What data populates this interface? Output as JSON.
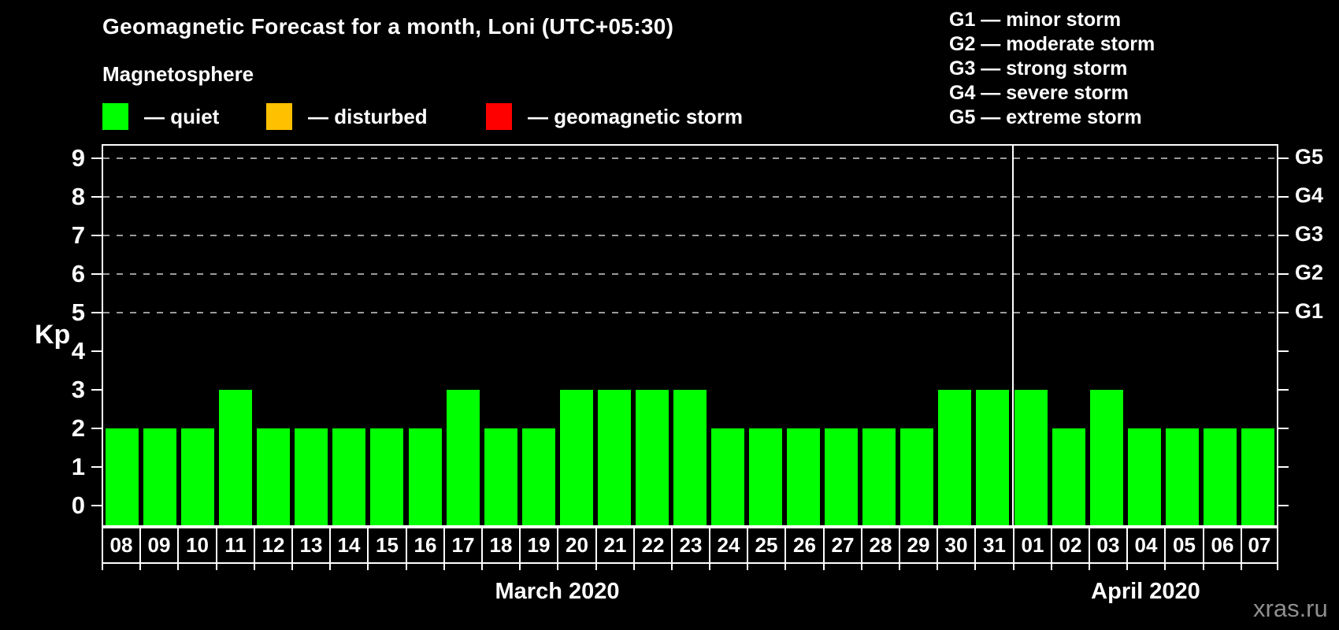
{
  "title": "Geomagnetic Forecast for a month, Loni (UTC+05:30)",
  "subtitle": "Magnetosphere",
  "status_legend": {
    "items": [
      {
        "name": "quiet",
        "label": "— quiet",
        "color": "#00ff00"
      },
      {
        "name": "disturbed",
        "label": "— disturbed",
        "color": "#ffc000"
      },
      {
        "name": "storm",
        "label": "— geomagnetic storm",
        "color": "#ff0000"
      }
    ]
  },
  "g_scale_legend": {
    "lines": [
      "G1 — minor storm",
      "G2 — moderate storm",
      "G3 — strong storm",
      "G4 — severe storm",
      "G5 — extreme storm"
    ]
  },
  "y_axis": {
    "label": "Kp",
    "ticks": [
      "0",
      "1",
      "2",
      "3",
      "4",
      "5",
      "6",
      "7",
      "8",
      "9"
    ]
  },
  "right_axis": {
    "labels": [
      {
        "text": "G1",
        "kp": 5
      },
      {
        "text": "G2",
        "kp": 6
      },
      {
        "text": "G3",
        "kp": 7
      },
      {
        "text": "G4",
        "kp": 8
      },
      {
        "text": "G5",
        "kp": 9
      }
    ]
  },
  "x_axis": {
    "months": [
      {
        "label": "March 2020",
        "start_index": 0,
        "days_count": 24
      },
      {
        "label": "April 2020",
        "start_index": 24,
        "days_count": 7
      }
    ]
  },
  "watermark": "xras.ru",
  "colors": {
    "background": "#000000",
    "frame": "#ffffff",
    "grid": "#9b9b9b",
    "bar_quiet": "#00ff00",
    "legend_disturbed": "#ffc000",
    "legend_storm": "#ff0000",
    "watermark": "#8f8f8f"
  },
  "chart_data": {
    "type": "bar",
    "title": "Geomagnetic Forecast for a month, Loni (UTC+05:30)",
    "ylabel": "Kp",
    "ylim": [
      0,
      9.6
    ],
    "grid": "horizontal dashed gridlines at Kp 5,6,7,8,9 only",
    "legend_position": "top-left (quiet/disturbed/storm), top-right (G1-G5 scale)",
    "bar_color": "#00ff00",
    "categories": [
      "08",
      "09",
      "10",
      "11",
      "12",
      "13",
      "14",
      "15",
      "16",
      "17",
      "18",
      "19",
      "20",
      "21",
      "22",
      "23",
      "24",
      "25",
      "26",
      "27",
      "28",
      "29",
      "30",
      "31",
      "01",
      "02",
      "03",
      "04",
      "05",
      "06",
      "07"
    ],
    "values": [
      2,
      2,
      2,
      3,
      2,
      2,
      2,
      2,
      2,
      3,
      2,
      2,
      3,
      3,
      3,
      3,
      2,
      2,
      2,
      2,
      2,
      2,
      3,
      3,
      3,
      2,
      3,
      2,
      2,
      2,
      2
    ],
    "x_groups": [
      {
        "label": "March 2020",
        "categories": [
          "08",
          "31"
        ]
      },
      {
        "label": "April 2020",
        "categories": [
          "01",
          "07"
        ]
      }
    ],
    "right_axis_labels": {
      "G1": 5,
      "G2": 6,
      "G3": 7,
      "G4": 8,
      "G5": 9
    }
  }
}
